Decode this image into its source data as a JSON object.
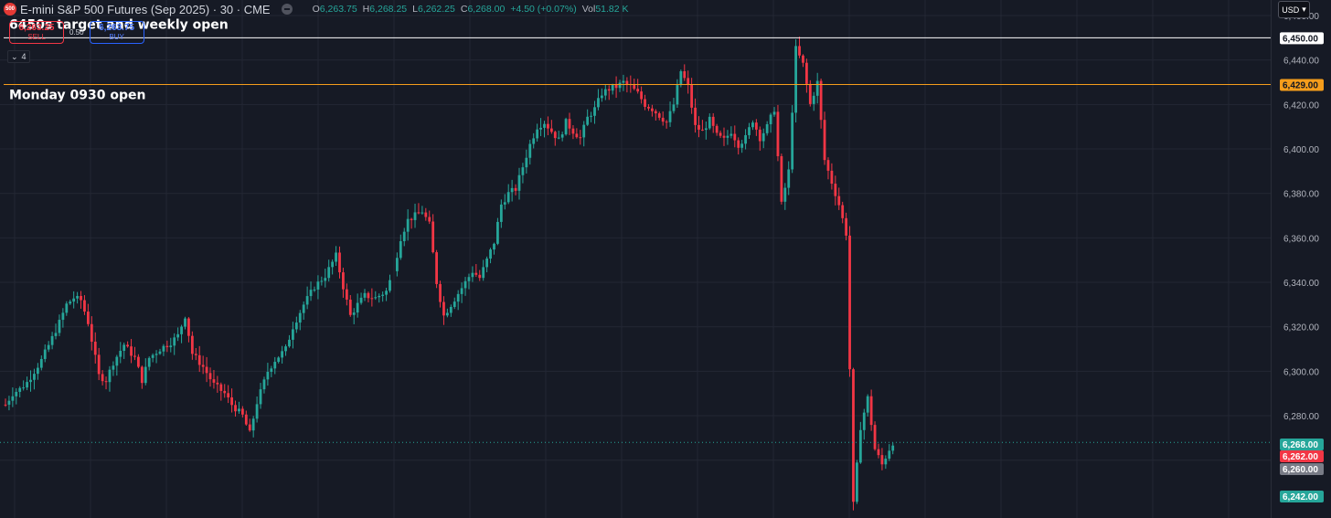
{
  "header": {
    "logo_text": "500",
    "title": "E-mini S&P 500 Futures (Sep 2025) · 30 · CME",
    "ohlc": {
      "o_label": "O",
      "o": "6,263.75",
      "h_label": "H",
      "h": "6,268.25",
      "l_label": "L",
      "l": "6,262.25",
      "c_label": "C",
      "c": "6,268.00",
      "change": "+4.50 (+0.07%)",
      "vol_label": "Vol",
      "vol": "51.82 K"
    }
  },
  "trade": {
    "sell_price": "6,263.25",
    "sell_label": "SELL",
    "spread": "0.50",
    "buy_price": "6,263.75",
    "buy_label": "BUY"
  },
  "indicator_toggle": {
    "count": "4"
  },
  "currency": {
    "label": "USD"
  },
  "colors": {
    "up": "#26a69a",
    "down": "#f23645",
    "background": "#161a25",
    "grid": "#232734",
    "target_line": "#ffffff",
    "open_line": "#f59d1b"
  },
  "chart_data": {
    "type": "candlestick",
    "title": "E-mini S&P 500 Futures (Sep 2025)",
    "interval": "30",
    "ylim": [
      6234,
      6467
    ],
    "y_ticks": [
      6460,
      6440,
      6420,
      6400,
      6380,
      6360,
      6340,
      6320,
      6300,
      6280
    ],
    "grid": true,
    "horizontal_lines": [
      {
        "price": 6450,
        "label": "6450s target and weekly open",
        "badge": "6,450.00",
        "color": "#ffffff"
      },
      {
        "price": 6429,
        "label": "Monday 0930 open",
        "badge": "6,429.00",
        "color": "#f59d1b"
      }
    ],
    "price_badges": [
      {
        "price": 6268,
        "text": "6,268.00",
        "color": "#26a69a"
      },
      {
        "price": 6262,
        "text": "6,262.00",
        "color": "#f23645"
      },
      {
        "price": 6260,
        "text": "6,260.00",
        "color": "#787b86"
      },
      {
        "price": 6242,
        "text": "6,242.00",
        "color": "#26a69a"
      }
    ],
    "current_price": 6268,
    "anchors": [
      [
        0,
        6285
      ],
      [
        2,
        6290
      ],
      [
        4,
        6292
      ],
      [
        6,
        6295
      ],
      [
        8,
        6300
      ],
      [
        10,
        6305
      ],
      [
        13,
        6315
      ],
      [
        15,
        6322
      ],
      [
        17,
        6330
      ],
      [
        19,
        6333
      ],
      [
        21,
        6332
      ],
      [
        23,
        6322
      ],
      [
        26,
        6298
      ],
      [
        28,
        6296
      ],
      [
        30,
        6304
      ],
      [
        33,
        6312
      ],
      [
        36,
        6306
      ],
      [
        38,
        6296
      ],
      [
        40,
        6306
      ],
      [
        43,
        6310
      ],
      [
        46,
        6313
      ],
      [
        48,
        6316
      ],
      [
        50,
        6325
      ],
      [
        52,
        6308
      ],
      [
        55,
        6302
      ],
      [
        58,
        6294
      ],
      [
        61,
        6290
      ],
      [
        63,
        6285
      ],
      [
        66,
        6280
      ],
      [
        68,
        6272
      ],
      [
        70,
        6286
      ],
      [
        73,
        6300
      ],
      [
        75,
        6305
      ],
      [
        78,
        6310
      ],
      [
        80,
        6320
      ],
      [
        83,
        6330
      ],
      [
        86,
        6338
      ],
      [
        89,
        6343
      ],
      [
        92,
        6352
      ],
      [
        94,
        6338
      ],
      [
        96,
        6325
      ],
      [
        98,
        6330
      ],
      [
        100,
        6334
      ],
      [
        103,
        6333
      ],
      [
        106,
        6336
      ],
      [
        108,
        6345
      ],
      [
        110,
        6360
      ],
      [
        112,
        6368
      ],
      [
        114,
        6370
      ],
      [
        116,
        6372
      ],
      [
        118,
        6366
      ],
      [
        120,
        6340
      ],
      [
        122,
        6325
      ],
      [
        124,
        6330
      ],
      [
        126,
        6335
      ],
      [
        128,
        6340
      ],
      [
        130,
        6345
      ],
      [
        132,
        6342
      ],
      [
        134,
        6350
      ],
      [
        136,
        6358
      ],
      [
        138,
        6375
      ],
      [
        140,
        6380
      ],
      [
        142,
        6382
      ],
      [
        144,
        6392
      ],
      [
        146,
        6402
      ],
      [
        148,
        6410
      ],
      [
        150,
        6412
      ],
      [
        152,
        6408
      ],
      [
        154,
        6404
      ],
      [
        156,
        6412
      ],
      [
        158,
        6408
      ],
      [
        160,
        6405
      ],
      [
        162,
        6414
      ],
      [
        164,
        6418
      ],
      [
        166,
        6425
      ],
      [
        168,
        6427
      ],
      [
        170,
        6428
      ],
      [
        172,
        6430
      ],
      [
        174,
        6428
      ],
      [
        176,
        6425
      ],
      [
        178,
        6420
      ],
      [
        180,
        6418
      ],
      [
        182,
        6415
      ],
      [
        184,
        6412
      ],
      [
        186,
        6420
      ],
      [
        188,
        6435
      ],
      [
        190,
        6428
      ],
      [
        192,
        6410
      ],
      [
        194,
        6408
      ],
      [
        196,
        6413
      ],
      [
        198,
        6406
      ],
      [
        200,
        6404
      ],
      [
        202,
        6408
      ],
      [
        204,
        6402
      ],
      [
        206,
        6405
      ],
      [
        208,
        6413
      ],
      [
        210,
        6405
      ],
      [
        212,
        6410
      ],
      [
        214,
        6418
      ],
      [
        216,
        6375
      ],
      [
        218,
        6390
      ],
      [
        220,
        6445
      ],
      [
        222,
        6438
      ],
      [
        224,
        6420
      ],
      [
        226,
        6430
      ],
      [
        228,
        6395
      ],
      [
        230,
        6385
      ],
      [
        232,
        6375
      ],
      [
        234,
        6362
      ],
      [
        236,
        6240
      ],
      [
        238,
        6275
      ],
      [
        240,
        6288
      ],
      [
        242,
        6265
      ],
      [
        244,
        6258
      ],
      [
        246,
        6265
      ],
      [
        247,
        6268
      ]
    ]
  }
}
